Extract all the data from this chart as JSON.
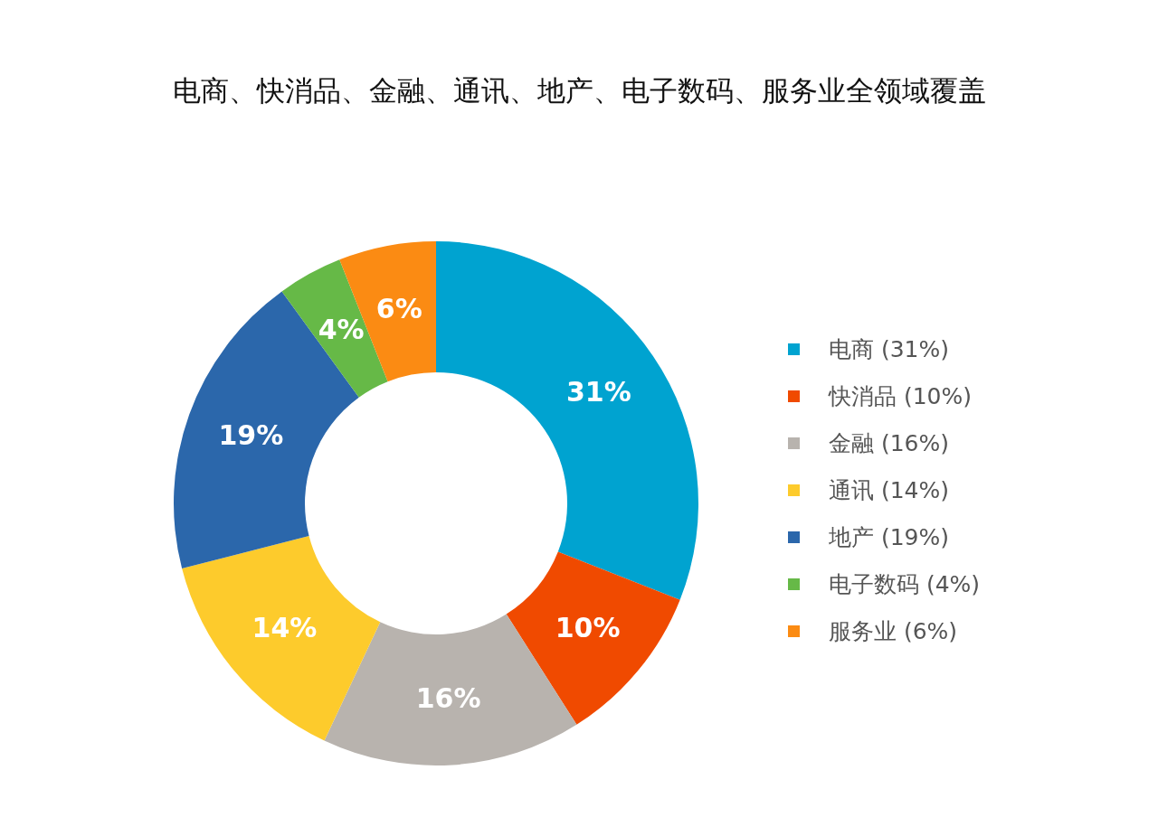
{
  "chart_data": {
    "type": "donut",
    "title": "电商、快消品、金融、通讯、地产、电子数码、服务业全领域覆盖",
    "categories": [
      "电商 (31%)",
      "快消品 (10%)",
      "金融 (16%)",
      "通讯 (14%)",
      "地产 (19%)",
      "电子数码 (4%)",
      "服务业 (6%)"
    ],
    "values": [
      31,
      10,
      16,
      14,
      19,
      4,
      6
    ],
    "value_labels": [
      "31%",
      "10%",
      "16%",
      "14%",
      "19%",
      "4%",
      "6%"
    ],
    "colors": [
      "#00a3d0",
      "#f04a00",
      "#b8b3ae",
      "#fdcb2c",
      "#2b67ab",
      "#66b947",
      "#fb8b13"
    ],
    "legend": "right"
  }
}
